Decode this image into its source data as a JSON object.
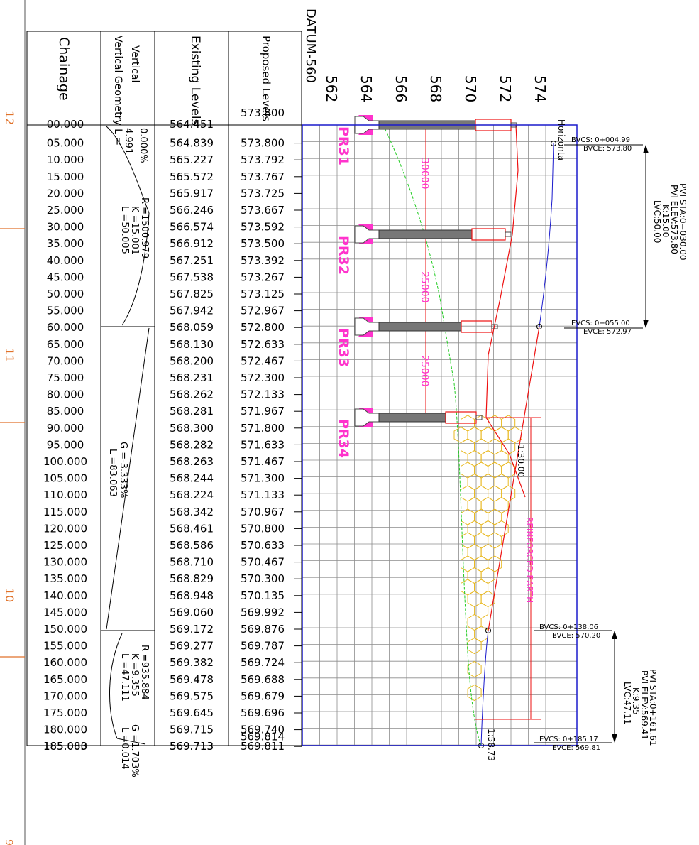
{
  "table": {
    "headers": {
      "chainage": "Chainage",
      "vertical_geometry": "Vertical Geometry L =",
      "existing_levels": "Existing Levels",
      "proposed_levels": "Proposed Levels"
    },
    "first_proposed": "573.800",
    "chainages": [
      "00.000",
      "05.000",
      "10.000",
      "15.000",
      "20.000",
      "25.000",
      "30.000",
      "35.000",
      "40.000",
      "45.000",
      "50.000",
      "55.000",
      "60.000",
      "65.000",
      "70.000",
      "75.000",
      "80.000",
      "85.000",
      "90.000",
      "95.000",
      "100.000",
      "105.000",
      "110.000",
      "115.000",
      "120.000",
      "125.000",
      "130.000",
      "135.000",
      "140.000",
      "145.000",
      "150.000",
      "155.000",
      "160.000",
      "165.000",
      "170.000",
      "175.000",
      "180.000",
      "185.000"
    ],
    "existing": [
      "564.451",
      "564.839",
      "565.227",
      "565.572",
      "565.917",
      "566.246",
      "566.574",
      "566.912",
      "567.251",
      "567.538",
      "567.825",
      "567.942",
      "568.059",
      "568.130",
      "568.200",
      "568.231",
      "568.262",
      "568.281",
      "568.300",
      "568.282",
      "568.263",
      "568.244",
      "568.224",
      "568.342",
      "568.461",
      "568.586",
      "568.710",
      "568.829",
      "568.948",
      "569.060",
      "569.172",
      "569.277",
      "569.382",
      "569.478",
      "569.575",
      "569.645",
      "569.715",
      "569.713"
    ],
    "proposed": [
      "",
      "573.800",
      "573.792",
      "573.767",
      "573.725",
      "573.667",
      "573.592",
      "573.500",
      "573.392",
      "573.267",
      "573.125",
      "572.967",
      "572.800",
      "572.633",
      "572.467",
      "572.300",
      "572.133",
      "571.967",
      "571.800",
      "571.633",
      "571.467",
      "571.300",
      "571.133",
      "570.967",
      "570.800",
      "570.633",
      "570.467",
      "570.300",
      "570.135",
      "569.992",
      "569.876",
      "569.787",
      "569.724",
      "569.688",
      "569.679",
      "569.696",
      "569.740",
      "569.811"
    ],
    "overstrike": {
      "chainage_last": "185.083",
      "existing_last": "569.713",
      "proposed_180": "569.814"
    },
    "geometry": {
      "g1": "0.000%",
      "l1": "4.991",
      "curve1": [
        "R =1500.979",
        "K =15.001",
        "L =50.005"
      ],
      "grade2": "G =-3.333%",
      "length2": "L =83.063",
      "curve2": [
        "R =935.884",
        "K =9.355",
        "L =47.111"
      ],
      "g_last": "G =1.703%",
      "l_last": "L =0.014"
    }
  },
  "profile": {
    "datum": "DATUM-560",
    "axis_ticks": [
      "562",
      "564",
      "566",
      "568",
      "570",
      "572",
      "574"
    ],
    "horizontal_label": "Horizonta",
    "piers": [
      "PR31",
      "PR32",
      "PR33",
      "PR34"
    ],
    "span_labels": [
      "30000",
      "25000",
      "25000"
    ],
    "reinforced_earth": "REINFORCED EARTH",
    "slope_label": "1:30.00",
    "end_label": "1:58.73",
    "curve1": {
      "bvcs": "BVCS: 0+004.99",
      "bvce": "BVCE: 573.80",
      "evcs": "EVCS: 0+055.00",
      "evce": "EVCE: 572.97",
      "pvi_sta": "PVI STA:0+030.00",
      "pvi_elev": "PVI ELEV:573.80",
      "k": "K:15.00",
      "lvc": "LVC:50.00"
    },
    "curve2": {
      "bvcs": "BVCS: 0+138.06",
      "bvce": "BVCE: 570.20",
      "evcs": "EVCS: 0+185.17",
      "evce": "EVCE: 569.81",
      "pvi_sta": "PVI STA:0+161.61",
      "pvi_elev": "PVI ELEV:569.41",
      "k": "K:9.35",
      "lvc": "LVC:47.11"
    }
  },
  "sheet": {
    "margin_marks": [
      "12",
      "11",
      "10"
    ]
  },
  "colors": {
    "grid": "#8c8c8c",
    "frame": "#1a1acc",
    "existing_ground": "#22cc22",
    "proposed_red": "#ee1111",
    "pier_magenta": "#ff33cc",
    "hex_fill": "#e8b820",
    "margin_orange": "#e0722a"
  }
}
